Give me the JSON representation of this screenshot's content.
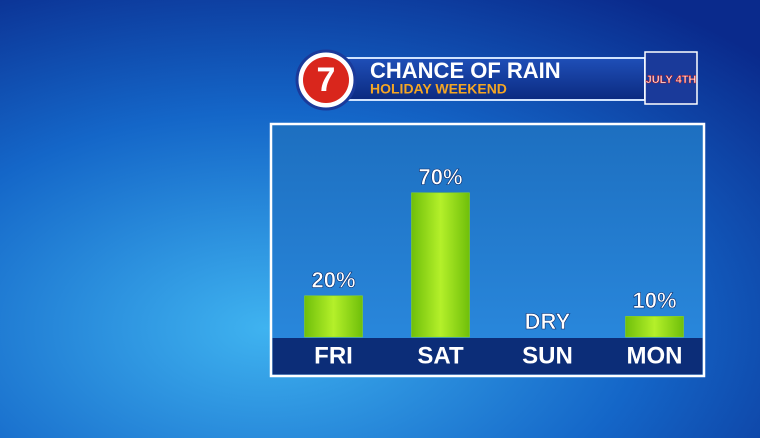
{
  "chart_data": {
    "type": "bar",
    "title": "CHANCE OF RAIN",
    "subtitle": "HOLIDAY WEEKEND",
    "logo": "7",
    "badge": "JULY 4TH",
    "categories": [
      "FRI",
      "SAT",
      "SUN",
      "MON"
    ],
    "values": [
      20,
      70,
      0,
      10
    ],
    "value_labels": [
      "20%",
      "70%",
      "DRY",
      "10%"
    ],
    "color": "#93dc14",
    "ylim": [
      0,
      100
    ]
  }
}
